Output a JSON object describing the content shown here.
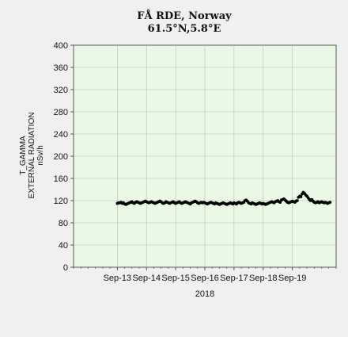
{
  "chart_data": {
    "type": "scatter",
    "title": "FÅ RDE, Norway",
    "subtitle": "61.5°N,5.8°E",
    "ylabel_lines": [
      "T_GAMMA",
      "EXTERNAL RADIATION",
      "nSv/h"
    ],
    "xlabel": "2018",
    "ylim": [
      0,
      400
    ],
    "yticks": [
      "0",
      "40",
      "80",
      "120",
      "160",
      "200",
      "240",
      "280",
      "320",
      "360",
      "400"
    ],
    "xlim": [
      "2018-09-11T12:00",
      "2018-09-20T12:00"
    ],
    "xticks": [
      {
        "date": "2018-09-13",
        "label": "Sep-13"
      },
      {
        "date": "2018-09-14",
        "label": "Sep-14"
      },
      {
        "date": "2018-09-15",
        "label": "Sep-15"
      },
      {
        "date": "2018-09-16",
        "label": "Sep-16"
      },
      {
        "date": "2018-09-17",
        "label": "Sep-17"
      },
      {
        "date": "2018-09-18",
        "label": "Sep-18"
      },
      {
        "date": "2018-09-19",
        "label": "Sep-19"
      }
    ],
    "grid": true,
    "colors": {
      "plot_bg": "#eaf9e6",
      "grid": "#b8b8b8",
      "marker": "#000000",
      "page_bg": "#f0f0f0"
    },
    "series": [
      {
        "x_start": "2018-09-13T00:00",
        "interval_hours": 1,
        "values": [
          115,
          116,
          116,
          117,
          115,
          116,
          114,
          113,
          114,
          115,
          116,
          117,
          118,
          116,
          115,
          117,
          118,
          117,
          116,
          115,
          116,
          117,
          118,
          119,
          118,
          117,
          116,
          117,
          118,
          117,
          116,
          115,
          116,
          117,
          118,
          119,
          118,
          116,
          115,
          116,
          118,
          117,
          116,
          115,
          116,
          117,
          118,
          116,
          115,
          116,
          117,
          118,
          116,
          115,
          116,
          117,
          118,
          117,
          116,
          115,
          114,
          116,
          117,
          118,
          119,
          118,
          116,
          115,
          116,
          117,
          116,
          117,
          116,
          115,
          114,
          115,
          116,
          117,
          116,
          115,
          114,
          116,
          115,
          114,
          113,
          114,
          115,
          116,
          115,
          114,
          113,
          114,
          115,
          116,
          115,
          114,
          116,
          115,
          114,
          116,
          117,
          116,
          115,
          116,
          117,
          120,
          121,
          119,
          116,
          115,
          114,
          116,
          115,
          114,
          113,
          114,
          115,
          116,
          115,
          114,
          115,
          114,
          113,
          114,
          115,
          116,
          117,
          118,
          117,
          116,
          118,
          119,
          120,
          118,
          117,
          121,
          122,
          123,
          121,
          119,
          117,
          116,
          117,
          118,
          119,
          118,
          117,
          119,
          120,
          126,
          128,
          127,
          132,
          135,
          133,
          130,
          128,
          125,
          122,
          120,
          122,
          119,
          117,
          116,
          117,
          118,
          116,
          117,
          118,
          117,
          116,
          117,
          116,
          115,
          116,
          117
        ]
      }
    ]
  }
}
